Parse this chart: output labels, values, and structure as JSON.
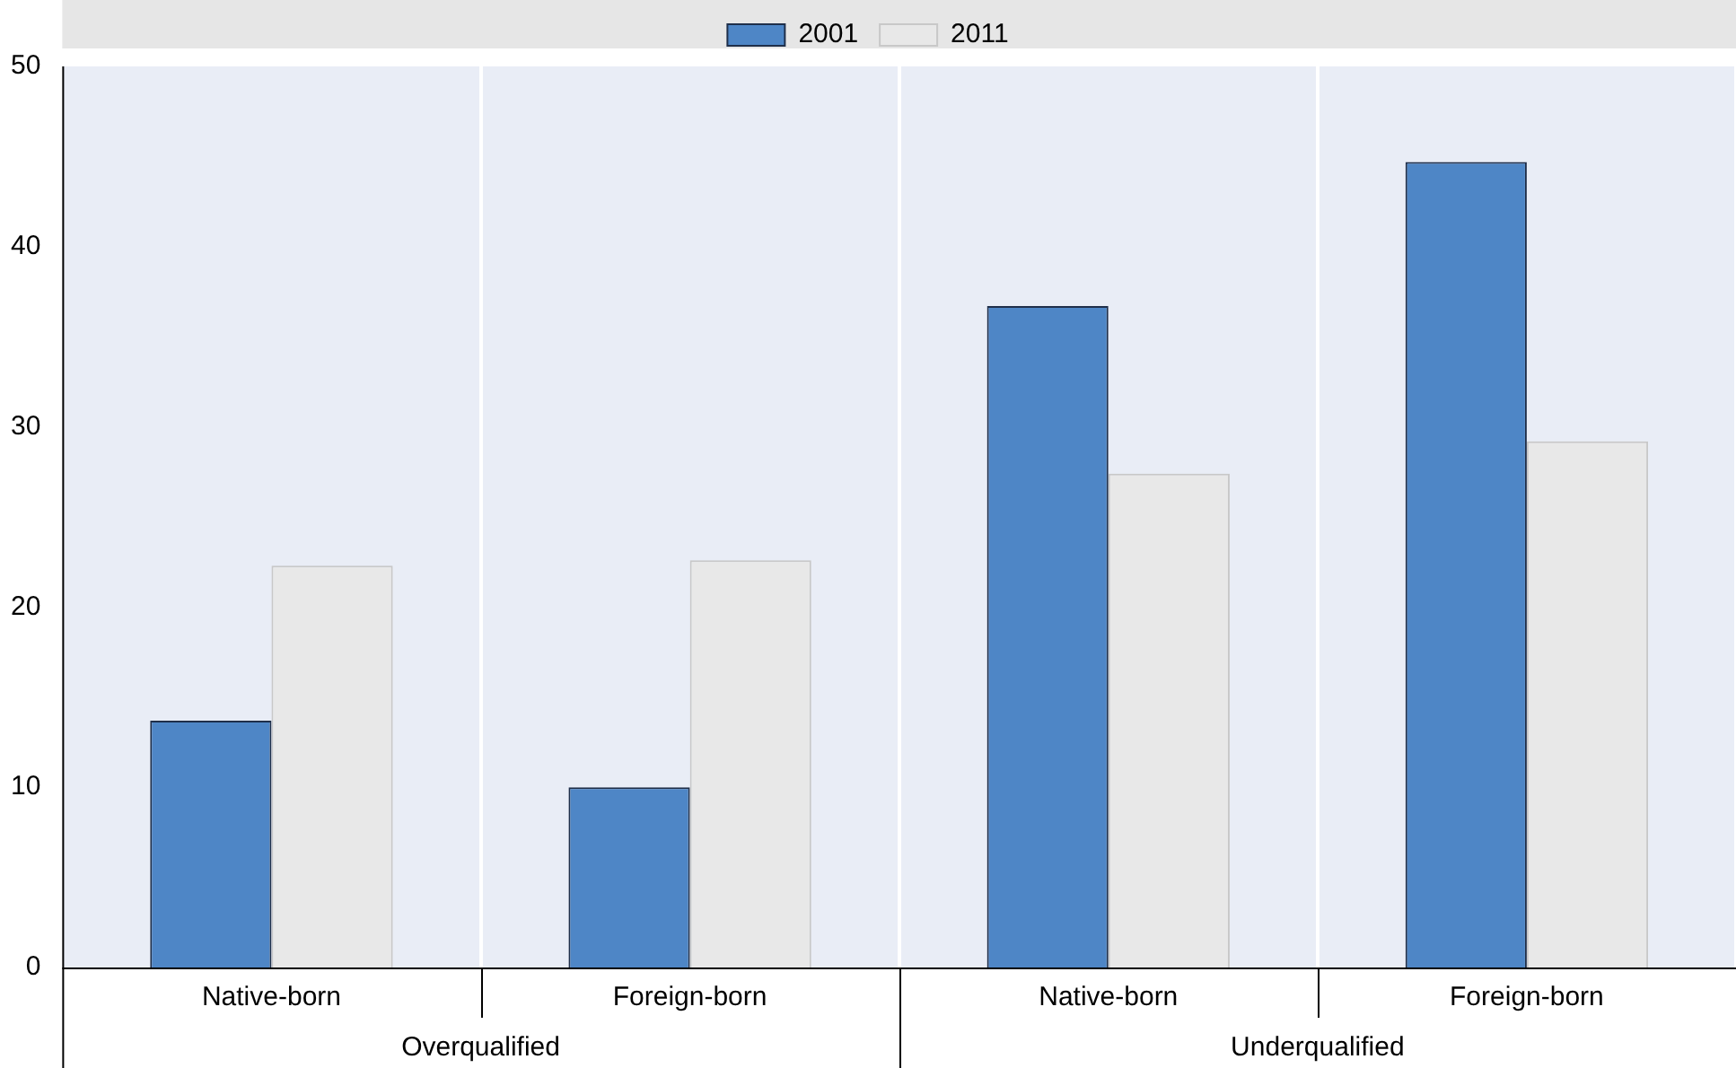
{
  "chart_data": {
    "type": "bar",
    "categories": [
      "Native-born",
      "Foreign-born",
      "Native-born",
      "Foreign-born"
    ],
    "series": [
      {
        "name": "2001",
        "color": "#4e86c6",
        "values": [
          13.7,
          10.0,
          36.7,
          44.7
        ]
      },
      {
        "name": "2011",
        "color": "#e8e8e8",
        "values": [
          22.3,
          22.6,
          27.4,
          29.2
        ]
      }
    ],
    "annotations": [
      "Overqualified",
      "Underqualified"
    ],
    "ylim": [
      0,
      50
    ],
    "yticks": [
      0,
      10,
      20,
      30,
      40,
      50
    ],
    "grid": "x",
    "legend": "top"
  }
}
